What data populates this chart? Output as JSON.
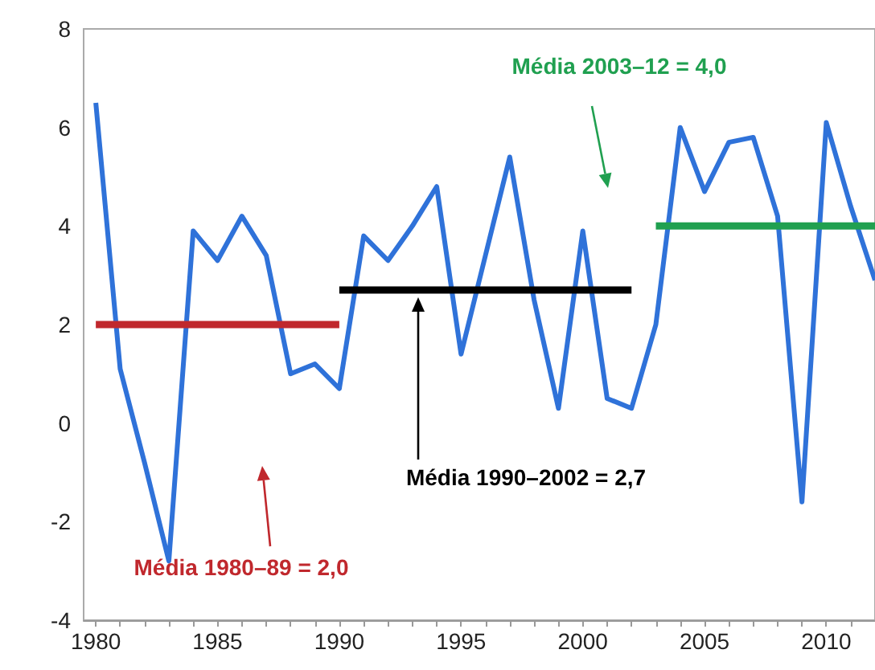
{
  "chart_data": {
    "type": "line",
    "x": [
      1980,
      1981,
      1982,
      1983,
      1984,
      1985,
      1986,
      1987,
      1988,
      1989,
      1990,
      1991,
      1992,
      1993,
      1994,
      1995,
      1996,
      1997,
      1998,
      1999,
      2000,
      2001,
      2002,
      2003,
      2004,
      2005,
      2006,
      2007,
      2008,
      2009,
      2010,
      2011,
      2012
    ],
    "series": [
      {
        "color": "#2f72d9",
        "values": [
          6.5,
          1.1,
          -0.8,
          -2.8,
          3.9,
          3.3,
          4.2,
          3.4,
          1.0,
          1.2,
          0.7,
          3.8,
          3.3,
          4.0,
          4.8,
          1.4,
          3.4,
          5.4,
          2.5,
          0.3,
          3.9,
          0.5,
          0.3,
          2.0,
          6.0,
          4.7,
          5.7,
          5.8,
          4.2,
          -1.6,
          6.1,
          4.4,
          2.9
        ]
      },
      {
        "type": "line",
        "name": "Média 1980–89 = 2,0",
        "color": "#c0282d",
        "x": [
          1980,
          1990
        ],
        "values": [
          2.0,
          2.0
        ]
      },
      {
        "type": "line",
        "name": "Média 1990–2002 = 2,7",
        "color": "#000000",
        "x": [
          1990,
          2002
        ],
        "values": [
          2.7,
          2.7
        ]
      },
      {
        "type": "line",
        "name": "Média 2003–12 = 4,0",
        "color": "#20a050",
        "x": [
          2003,
          2012
        ],
        "values": [
          4.0,
          4.0
        ]
      }
    ],
    "xlim": [
      1979.5,
      2012
    ],
    "xticks": [
      1980,
      1985,
      1990,
      1995,
      2000,
      2005,
      2010
    ],
    "ylim": [
      -4,
      8
    ],
    "yticks": [
      -4,
      -2,
      0,
      2,
      4,
      6,
      8
    ],
    "grid": false,
    "legend": false,
    "marker": "none",
    "line_style": "solid"
  }
}
